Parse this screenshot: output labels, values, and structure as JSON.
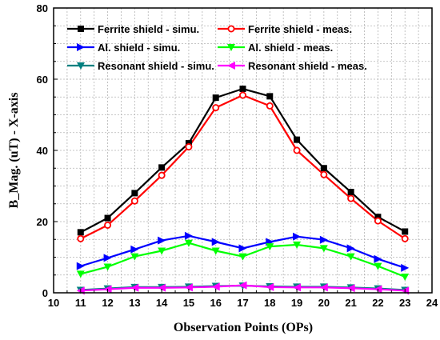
{
  "chart_data": {
    "type": "line",
    "title": "",
    "xlabel": "Observation Points (OPs)",
    "ylabel": "B_Mag. (uT) - X-axis",
    "xlim": [
      10,
      24
    ],
    "ylim": [
      0,
      80
    ],
    "x_ticks": [
      "10",
      "11",
      "12",
      "13",
      "14",
      "15",
      "16",
      "17",
      "18",
      "19",
      "20",
      "21",
      "22",
      "23",
      "24"
    ],
    "y_ticks": [
      "0",
      "20",
      "40",
      "60",
      "80"
    ],
    "grid": true,
    "legend_position": "top",
    "x": [
      11,
      12,
      13,
      14,
      15,
      16,
      17,
      18,
      19,
      20,
      21,
      22,
      23
    ],
    "series": [
      {
        "name": "Ferrite shield - simu.",
        "color": "#000000",
        "marker": "square",
        "values": [
          17.0,
          21.0,
          28.0,
          35.2,
          42.0,
          54.8,
          57.3,
          55.2,
          43.0,
          35.0,
          28.3,
          21.3,
          17.2
        ]
      },
      {
        "name": "Ferrite shield - meas.",
        "color": "#ff0000",
        "marker": "circle-open",
        "values": [
          15.2,
          19.0,
          25.8,
          33.0,
          41.0,
          52.0,
          55.5,
          52.5,
          40.0,
          33.2,
          26.5,
          20.2,
          15.2
        ]
      },
      {
        "name": "Al. shield - simu.",
        "color": "#0000ff",
        "marker": "triangle-right",
        "values": [
          7.5,
          9.8,
          12.2,
          14.7,
          16.0,
          14.3,
          12.5,
          14.3,
          15.8,
          14.9,
          12.5,
          9.5,
          7.0
        ]
      },
      {
        "name": "Al. shield - meas.",
        "color": "#00ff00",
        "marker": "triangle-down",
        "values": [
          5.3,
          7.3,
          10.2,
          11.8,
          14.0,
          11.8,
          10.2,
          13.0,
          13.5,
          12.5,
          10.2,
          7.5,
          4.5
        ]
      },
      {
        "name": "Resonant shield - simu.",
        "color": "#008080",
        "marker": "triangle-down",
        "values": [
          0.8,
          1.2,
          1.6,
          1.6,
          1.7,
          1.9,
          2.0,
          1.8,
          1.7,
          1.7,
          1.5,
          1.2,
          0.8
        ]
      },
      {
        "name": "Resonant shield - meas.",
        "color": "#ff00ff",
        "marker": "triangle-left",
        "values": [
          0.6,
          1.0,
          1.4,
          1.4,
          1.5,
          1.7,
          2.1,
          1.6,
          1.5,
          1.5,
          1.3,
          1.0,
          0.6
        ]
      }
    ]
  }
}
